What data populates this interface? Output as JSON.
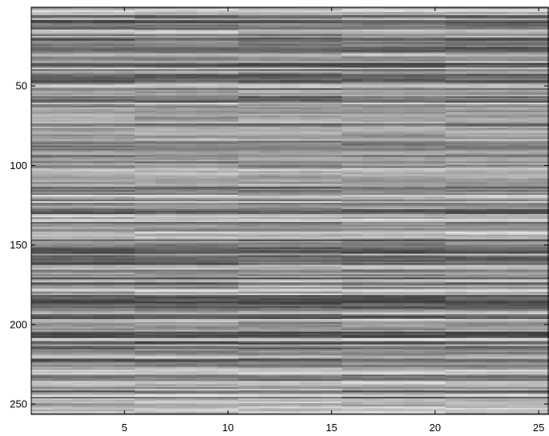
{
  "chart_data": {
    "type": "heatmap",
    "colormap": "gray",
    "title": "",
    "xlabel": "",
    "ylabel": "",
    "x_range": [
      0.5,
      25.5
    ],
    "y_range": [
      0.5,
      256.5
    ],
    "y_reversed": true,
    "n_cols": 25,
    "n_rows": 256,
    "value_range": [
      0.25,
      0.9
    ],
    "x_ticks": [
      5,
      10,
      15,
      20,
      25
    ],
    "x_tick_labels": [
      "5",
      "10",
      "15",
      "20",
      "25"
    ],
    "y_ticks": [
      50,
      100,
      150,
      200,
      250
    ],
    "y_tick_labels": [
      "50",
      "100",
      "150",
      "200",
      "250"
    ],
    "column_blocks": [
      [
        1,
        5
      ],
      [
        6,
        10
      ],
      [
        11,
        15
      ],
      [
        16,
        20
      ],
      [
        21,
        25
      ]
    ],
    "description": "",
    "colors": {
      "axis": "#000000",
      "background": "#ffffff"
    }
  }
}
